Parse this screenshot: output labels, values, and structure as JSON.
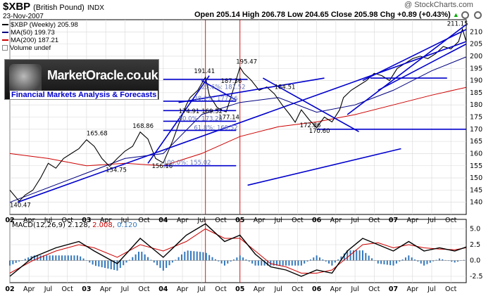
{
  "header": {
    "symbol": "$XBP",
    "name": "(British Pound)",
    "exchange": "INDX",
    "date": "23-Nov-2007",
    "open": "Open 205.14",
    "high": "High 206.78",
    "low": "Low 204.65",
    "close": "Close 205.98",
    "chg": "Chg +0.89 (+0.43%)",
    "chg_arrow": "▲",
    "copyright": "@ StockCharts.com"
  },
  "legend": {
    "price": "$XBP (Weekly) 205.98",
    "ma50": "MA(50) 199.73",
    "ma200": "MA(200) 187.21",
    "volume": "Volume undef"
  },
  "logo": {
    "text": "MarketOracle.co.uk",
    "tagline": "Financial Markets Analysis & Forecasts"
  },
  "macd": {
    "label": "MACD(12,26,9)",
    "v1": "2.128",
    "v2": "2.008",
    "v3": "0.120"
  },
  "colors": {
    "price": "#000000",
    "ma50": "#000080",
    "ma200": "#cc0000",
    "trend": "#0000cc",
    "macd_line": "#000000",
    "signal": "#cc0000",
    "hist": "#3377bb",
    "event_line": "#cc0000",
    "logo_text": "#ffffff",
    "tagline": "#0000cc"
  },
  "icons": {
    "settings": "gear-icon"
  },
  "chart_data": [
    {
      "type": "line",
      "title": "$XBP (British Pound) Weekly",
      "x_ticks": [
        "02",
        "Apr",
        "Jul",
        "Oct",
        "03",
        "Apr",
        "Jul",
        "Oct",
        "04",
        "Apr",
        "Jul",
        "Oct",
        "05",
        "Apr",
        "Jul",
        "Oct",
        "06",
        "Apr",
        "Jul",
        "Oct",
        "07",
        "Apr",
        "Jul",
        "Oct"
      ],
      "y_ticks": [
        140,
        145,
        150,
        155,
        160,
        165,
        170,
        175,
        180,
        185,
        190,
        195,
        200,
        205,
        210
      ],
      "ylim": [
        135,
        215
      ],
      "x_range": [
        2002.0,
        2007.95
      ],
      "series": [
        {
          "name": "$XBP",
          "x": [
            2002.0,
            2002.12,
            2002.2,
            2002.3,
            2002.4,
            2002.5,
            2002.6,
            2002.7,
            2002.8,
            2002.9,
            2003.0,
            2003.1,
            2003.2,
            2003.3,
            2003.4,
            2003.5,
            2003.6,
            2003.7,
            2003.8,
            2003.9,
            2004.0,
            2004.12,
            2004.2,
            2004.3,
            2004.35,
            2004.45,
            2004.55,
            2004.6,
            2004.7,
            2004.75,
            2004.82,
            2004.9,
            2005.0,
            2005.05,
            2005.15,
            2005.25,
            2005.35,
            2005.45,
            2005.55,
            2005.65,
            2005.72,
            2005.8,
            2005.9,
            2006.0,
            2006.1,
            2006.2,
            2006.3,
            2006.35,
            2006.45,
            2006.55,
            2006.65,
            2006.75,
            2006.85,
            2006.95,
            2007.05,
            2007.15,
            2007.25,
            2007.35,
            2007.45,
            2007.55,
            2007.65,
            2007.75,
            2007.85,
            2007.9,
            2007.95
          ],
          "values": [
            145,
            140.47,
            143,
            145,
            150,
            156,
            154,
            158,
            160,
            162,
            165.68,
            163,
            158,
            154.75,
            158,
            161,
            163,
            168.86,
            166,
            158,
            156.16,
            165,
            172,
            180,
            183,
            186,
            191.41,
            184,
            179,
            178,
            177.14,
            185,
            195.47,
            193,
            190,
            186,
            187.36,
            184.51,
            180,
            176,
            172.86,
            178,
            174,
            170.6,
            175,
            173,
            178,
            183,
            186,
            188,
            190,
            193,
            192,
            190,
            195,
            197,
            199,
            200,
            199,
            201,
            204,
            203,
            206,
            211.15,
            205.98
          ]
        },
        {
          "name": "MA(50)",
          "x": [
            2002.0,
            2003.0,
            2003.5,
            2004.0,
            2004.5,
            2005.0,
            2005.5,
            2006.0,
            2006.5,
            2007.0,
            2007.5,
            2007.95
          ],
          "values": [
            140,
            152,
            158,
            160,
            176,
            181,
            183,
            177,
            180,
            186,
            194,
            199.73
          ]
        },
        {
          "name": "MA(200)",
          "x": [
            2002.0,
            2002.5,
            2003.0,
            2003.5,
            2004.0,
            2004.5,
            2005.0,
            2005.5,
            2006.0,
            2006.5,
            2007.0,
            2007.5,
            2007.95
          ],
          "values": [
            160,
            158,
            155,
            156,
            155,
            160,
            167,
            171,
            173,
            176,
            180,
            184,
            187.21
          ]
        }
      ],
      "annotations": [
        "140.47",
        "154.75",
        "165.68",
        "168.86",
        "156.16",
        "191.41",
        "187.36",
        "195.47",
        "184.51",
        "172.86",
        "170.60",
        "177.14",
        "174.91",
        "169.52",
        "211.15",
        "100.0%: 155.02",
        "50.0%: 173.28",
        "38.2%: 177.66",
        "23.6%: 181.52",
        "61.8%: 169.52"
      ]
    },
    {
      "type": "line",
      "title": "MACD(12,26,9)",
      "y_ticks": [
        -2.5,
        0.0,
        2.5,
        5.0
      ],
      "ylim": [
        -3.5,
        6.5
      ],
      "series": [
        {
          "name": "MACD",
          "x": [
            2002.0,
            2002.3,
            2002.6,
            2002.9,
            2003.1,
            2003.4,
            2003.7,
            2004.0,
            2004.3,
            2004.55,
            2004.8,
            2005.0,
            2005.2,
            2005.4,
            2005.6,
            2005.8,
            2006.0,
            2006.2,
            2006.4,
            2006.6,
            2006.8,
            2007.0,
            2007.2,
            2007.4,
            2007.6,
            2007.8,
            2007.95
          ],
          "values": [
            -2.5,
            0.5,
            2.0,
            3.0,
            1.5,
            -0.5,
            3.5,
            0.5,
            4.0,
            5.8,
            3.0,
            4.0,
            1.0,
            -1.0,
            -1.5,
            -2.5,
            -1.5,
            -2.0,
            1.5,
            3.5,
            2.5,
            1.5,
            3.0,
            1.5,
            2.0,
            1.5,
            2.128
          ]
        },
        {
          "name": "Signal",
          "x": [
            2002.0,
            2002.3,
            2002.6,
            2002.9,
            2003.1,
            2003.4,
            2003.7,
            2004.0,
            2004.3,
            2004.55,
            2004.8,
            2005.0,
            2005.2,
            2005.4,
            2005.6,
            2005.8,
            2006.0,
            2006.2,
            2006.4,
            2006.6,
            2006.8,
            2007.0,
            2007.2,
            2007.4,
            2007.6,
            2007.8,
            2007.95
          ],
          "values": [
            -2.0,
            0.0,
            1.5,
            2.5,
            2.0,
            0.5,
            2.5,
            1.5,
            3.0,
            5.0,
            3.5,
            3.5,
            1.5,
            -0.5,
            -1.0,
            -2.0,
            -2.0,
            -1.5,
            0.5,
            2.5,
            2.8,
            2.0,
            2.5,
            2.0,
            1.8,
            1.7,
            2.008
          ]
        }
      ]
    }
  ]
}
